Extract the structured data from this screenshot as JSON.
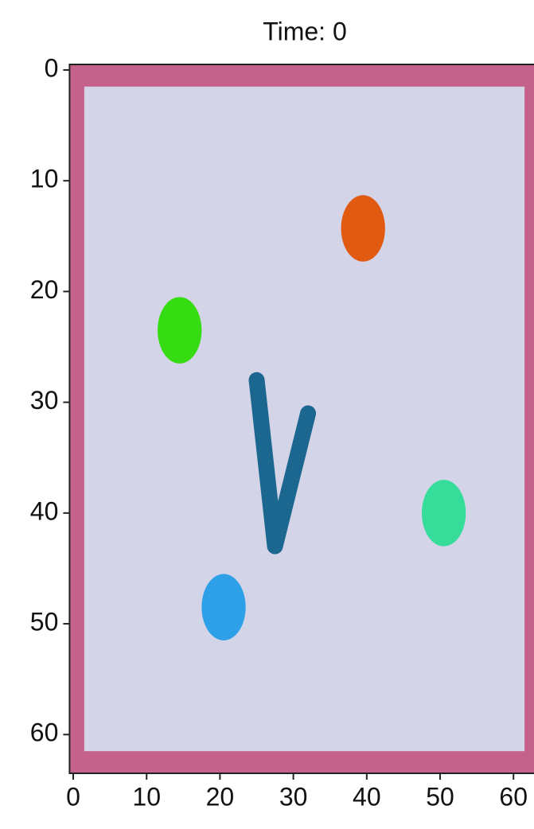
{
  "chart_data": {
    "type": "scatter",
    "title": "Time: 0",
    "xlim": [
      -0.5,
      63.5
    ],
    "ylim": [
      63.5,
      -0.5
    ],
    "xticks": [
      0,
      10,
      20,
      30,
      40,
      50,
      60
    ],
    "yticks": [
      0,
      10,
      20,
      30,
      40,
      50,
      60
    ],
    "points": [
      {
        "x": 39.5,
        "y": 14.3,
        "color": "#e05a12"
      },
      {
        "x": 14.5,
        "y": 23.5,
        "color": "#36dc12"
      },
      {
        "x": 50.5,
        "y": 40,
        "color": "#35dc9a"
      },
      {
        "x": 20.5,
        "y": 48.5,
        "color": "#2ea0e8"
      }
    ],
    "arm": {
      "x": [
        25,
        27.5,
        32
      ],
      "y": [
        28,
        43,
        31
      ],
      "color": "#1b6790"
    }
  }
}
